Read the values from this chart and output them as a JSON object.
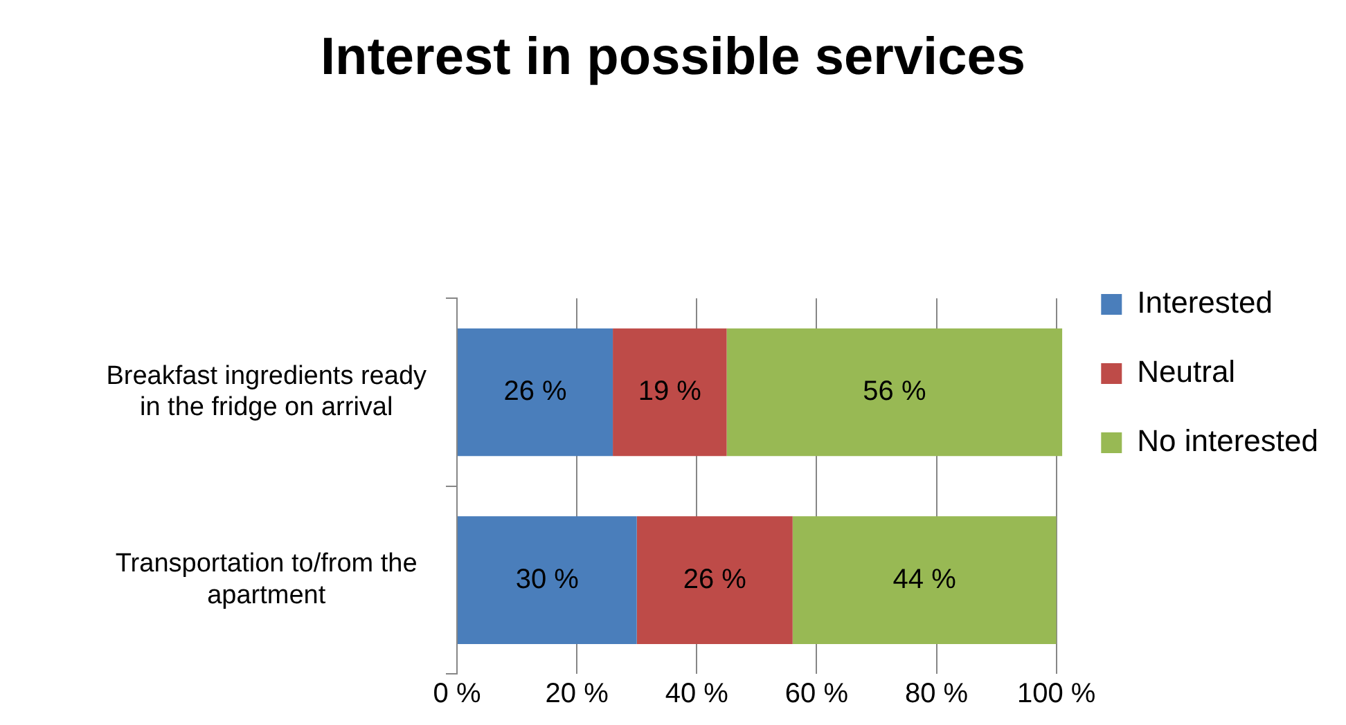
{
  "chart_data": {
    "type": "bar",
    "title": "Interest in possible services",
    "orientation": "horizontal",
    "stacked": true,
    "categories": [
      "Breakfast ingredients ready in the fridge on arrival",
      "Transportation to/from the apartment"
    ],
    "series": [
      {
        "name": "Interested",
        "color": "#4a7ebb",
        "values": [
          26,
          30
        ],
        "value_labels": [
          "26 %",
          "30 %"
        ]
      },
      {
        "name": "Neutral",
        "color": "#be4b48",
        "values": [
          19,
          26
        ],
        "value_labels": [
          "19 %",
          "26 %"
        ]
      },
      {
        "name": "No interested",
        "color": "#98b954",
        "values": [
          56,
          44
        ],
        "value_labels": [
          "56 %",
          "44 %"
        ]
      }
    ],
    "xlim": [
      0,
      101
    ],
    "xticks": [
      {
        "value": 0,
        "label": "0 %"
      },
      {
        "value": 20,
        "label": "20 %"
      },
      {
        "value": 40,
        "label": "40 %"
      },
      {
        "value": 60,
        "label": "60 %"
      },
      {
        "value": 80,
        "label": "80 %"
      },
      {
        "value": 100,
        "label": "100 %"
      }
    ],
    "grid": "x",
    "legend": "right"
  }
}
